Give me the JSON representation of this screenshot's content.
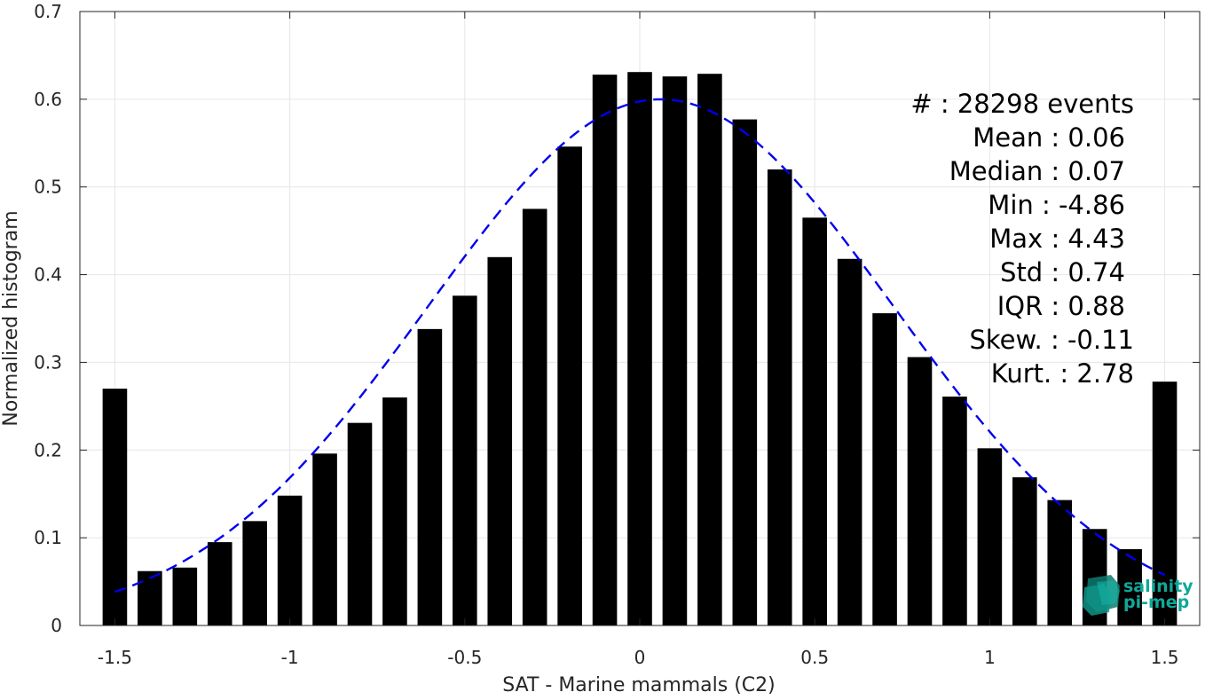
{
  "chart_data": {
    "type": "bar",
    "xlabel": "SAT - Marine mammals (C2)",
    "ylabel": "Normalized histogram",
    "xlim": [
      -1.6,
      1.6
    ],
    "ylim": [
      0,
      0.7
    ],
    "x_ticks": [
      -1.5,
      -1,
      -0.5,
      0,
      0.5,
      1,
      1.5
    ],
    "x_tick_labels": [
      "-1.5",
      "-1",
      "-0.5",
      "0",
      "0.5",
      "1",
      "1.5"
    ],
    "y_ticks": [
      0,
      0.1,
      0.2,
      0.3,
      0.4,
      0.5,
      0.6,
      0.7
    ],
    "y_tick_labels": [
      "0",
      "0.1",
      "0.2",
      "0.3",
      "0.4",
      "0.5",
      "0.6",
      "0.7"
    ],
    "grid": true,
    "bar_color": "#000000",
    "bar_width": 0.07,
    "x": [
      -1.5,
      -1.4,
      -1.3,
      -1.2,
      -1.1,
      -1.0,
      -0.9,
      -0.8,
      -0.7,
      -0.6,
      -0.5,
      -0.4,
      -0.3,
      -0.2,
      -0.1,
      0.0,
      0.1,
      0.2,
      0.3,
      0.4,
      0.5,
      0.6,
      0.7,
      0.8,
      0.9,
      1.0,
      1.1,
      1.2,
      1.3,
      1.4,
      1.5
    ],
    "values": [
      0.27,
      0.062,
      0.066,
      0.095,
      0.119,
      0.148,
      0.196,
      0.231,
      0.26,
      0.338,
      0.376,
      0.42,
      0.475,
      0.546,
      0.628,
      0.631,
      0.626,
      0.629,
      0.577,
      0.52,
      0.465,
      0.418,
      0.356,
      0.306,
      0.261,
      0.202,
      0.169,
      0.143,
      0.11,
      0.087,
      0.278
    ],
    "fit_curve": {
      "style": "dashed",
      "color": "#0000ee",
      "mean": 0.06,
      "std": 0.665,
      "x_range": [
        -1.5,
        1.5
      ]
    },
    "stats": [
      "#  : 28298 events",
      "Mean : 0.06",
      "Median : 0.07",
      "Min : -4.86",
      "Max : 4.43",
      "Std : 0.74",
      "IQR : 0.88",
      "Skew. : -0.11",
      "Kurt. : 2.78"
    ]
  },
  "logo": {
    "line1": "salinity",
    "line2": "pi-mep",
    "color": "#10a89a"
  }
}
